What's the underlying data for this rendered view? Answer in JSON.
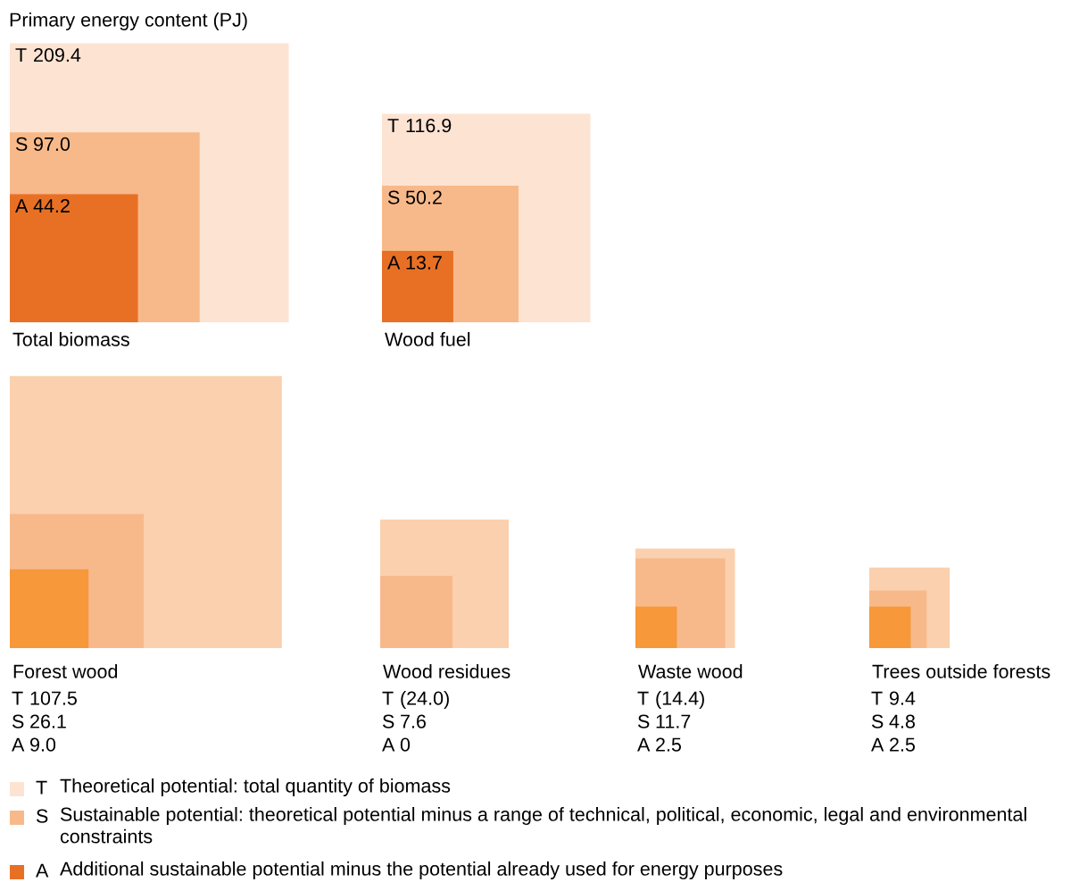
{
  "chart_data": {
    "type": "other",
    "title": "Primary energy content (PJ)",
    "categories": [
      "Total biomass",
      "Wood fuel",
      "Forest wood",
      "Wood residues",
      "Waste wood",
      "Trees outside forests"
    ],
    "series": [
      {
        "name": "T",
        "values": [
          209.4,
          116.9,
          107.5,
          24.0,
          14.4,
          9.4
        ],
        "value_labels": [
          "209.4",
          "116.9",
          "107.5",
          "(24.0)",
          "(14.4)",
          "9.4"
        ],
        "colors": [
          "#fde3d2",
          "#fde3d2",
          "#fbd0ae",
          "#fbd0ae",
          "#fbd0ae",
          "#fbd0ae"
        ]
      },
      {
        "name": "S",
        "values": [
          97.0,
          50.2,
          26.1,
          7.6,
          11.7,
          4.8
        ],
        "value_labels": [
          "97.0",
          "50.2",
          "26.1",
          "7.6",
          "11.7",
          "4.8"
        ],
        "colors": [
          "#f8b98a",
          "#f8b98a",
          "#f8b98a",
          "#f8b98a",
          "#f8b98a",
          "#f8b98a"
        ]
      },
      {
        "name": "A",
        "values": [
          44.2,
          13.7,
          9.0,
          0,
          2.5,
          2.5
        ],
        "value_labels": [
          "44.2",
          "13.7",
          "9.0",
          "0",
          "2.5",
          "2.5"
        ],
        "colors": [
          "#e87025",
          "#e87025",
          "#f7983a",
          "#f7983a",
          "#f7983a",
          "#f7983a"
        ]
      }
    ],
    "annotations": [
      "Theoretical potential: total quantity of biomass",
      "Sustainable potential: theoretical potential minus a range of technical, political, economic, legal and environmental constraints",
      "Additional sustainable potential minus the potential already used for energy purposes"
    ],
    "legend": "bottom"
  }
}
